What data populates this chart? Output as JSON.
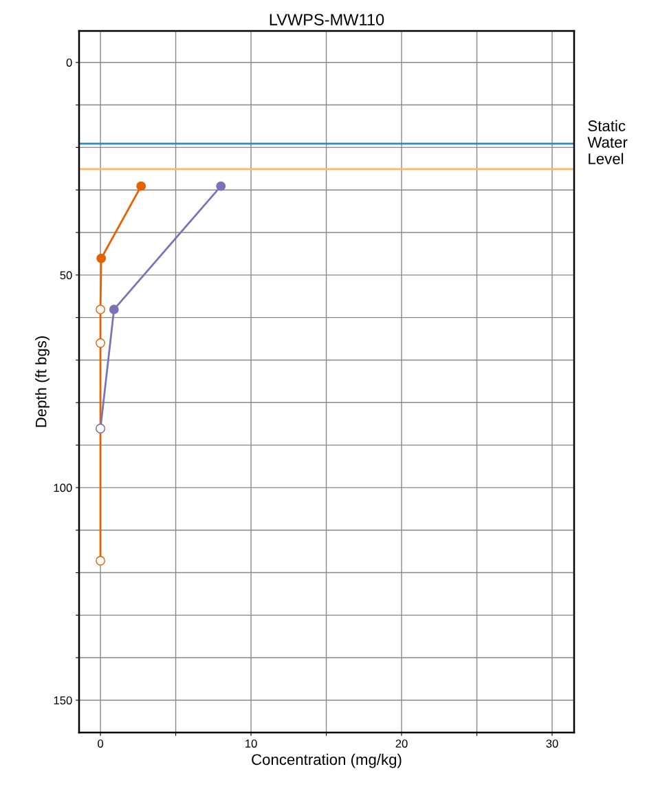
{
  "chart_data": {
    "type": "line",
    "title": "LVWPS-MW110",
    "xlabel": "Concentration (mg/kg)",
    "ylabel": "Depth (ft bgs)",
    "xlim": [
      -1.42,
      31.46
    ],
    "xticks": [
      0,
      {
        "value": 5,
        "label": null
      },
      10,
      {
        "value": 15,
        "label": null
      },
      20,
      {
        "value": 25,
        "label": null
      },
      30
    ],
    "ylim": [
      157.6,
      -7.4
    ],
    "yticks": [
      0,
      {
        "value": 10,
        "label": null
      },
      {
        "value": 20,
        "label": null
      },
      {
        "value": 30,
        "label": null
      },
      {
        "value": 40,
        "label": null
      },
      50,
      {
        "value": 60,
        "label": null
      },
      {
        "value": 70,
        "label": null
      },
      {
        "value": 80,
        "label": null
      },
      {
        "value": 90,
        "label": null
      },
      100,
      {
        "value": 110,
        "label": null
      },
      {
        "value": 120,
        "label": null
      },
      {
        "value": 130,
        "label": null
      },
      {
        "value": 140,
        "label": null
      },
      150
    ],
    "grid": true,
    "marker": "circle",
    "line_style": "solid",
    "ref_lines": [
      {
        "axis": "y",
        "value": 19.1,
        "label": "Static\nWater\nLevel",
        "color": "#2b8cbe"
      },
      {
        "axis": "y",
        "value": 25.1,
        "label": null,
        "color": "#fdb863"
      }
    ],
    "series": [
      {
        "color": "#e66101",
        "x": [
          2.7,
          0.05,
          0,
          0,
          0,
          0
        ],
        "values": [
          29.1,
          46.1,
          58.1,
          66.0,
          86.1,
          117.2
        ],
        "colors": [
          "#e66101",
          "#e66101",
          "#ffffff",
          "#ffffff",
          "#ffffff",
          "#ffffff"
        ]
      },
      {
        "color": "#7b73b8",
        "x": [
          8.0,
          0.9,
          0
        ],
        "values": [
          29.1,
          58.1,
          86.1
        ],
        "colors": [
          "#7b73b8",
          "#7b73b8",
          "#ffffff"
        ]
      }
    ]
  }
}
